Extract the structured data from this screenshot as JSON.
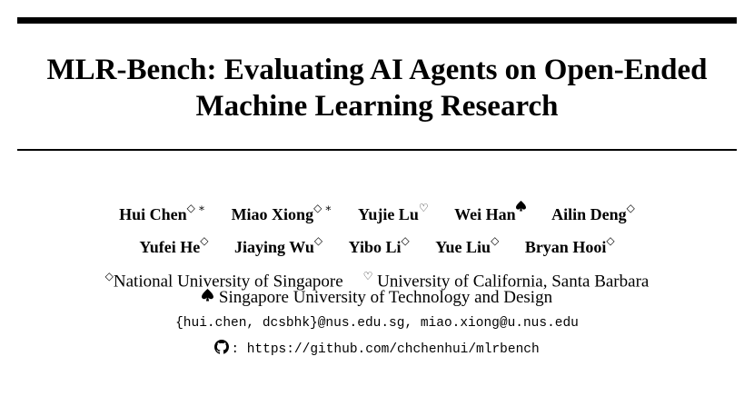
{
  "paper": {
    "title_line1": "MLR-Bench: Evaluating AI Agents on Open-Ended",
    "title_line2": "Machine Learning Research",
    "authors": [
      {
        "name": "Hui Chen",
        "marks": "◇ ∗"
      },
      {
        "name": "Miao Xiong",
        "marks": "◇ ∗"
      },
      {
        "name": "Yujie Lu",
        "marks": "♡"
      },
      {
        "name": "Wei Han",
        "marks": "spade"
      },
      {
        "name": "Ailin Deng",
        "marks": "◇"
      },
      {
        "name": "Yufei He",
        "marks": "◇"
      },
      {
        "name": "Jiaying Wu",
        "marks": "◇"
      },
      {
        "name": "Yibo Li",
        "marks": "◇"
      },
      {
        "name": "Yue Liu",
        "marks": "◇"
      },
      {
        "name": "Bryan Hooi",
        "marks": "◇"
      }
    ],
    "affiliations": [
      {
        "mark": "◇",
        "name": "National University of Singapore"
      },
      {
        "mark": "♡",
        "name": "University of California, Santa Barbara"
      },
      {
        "mark": "spade",
        "name": "Singapore University of Technology and Design"
      }
    ],
    "emails": "{hui.chen, dcsbhk}@nus.edu.sg, miao.xiong@u.nus.edu",
    "repo_label": ":",
    "repo_url": "https://github.com/chchenhui/mlrbench",
    "repo_icon": "github-icon"
  }
}
